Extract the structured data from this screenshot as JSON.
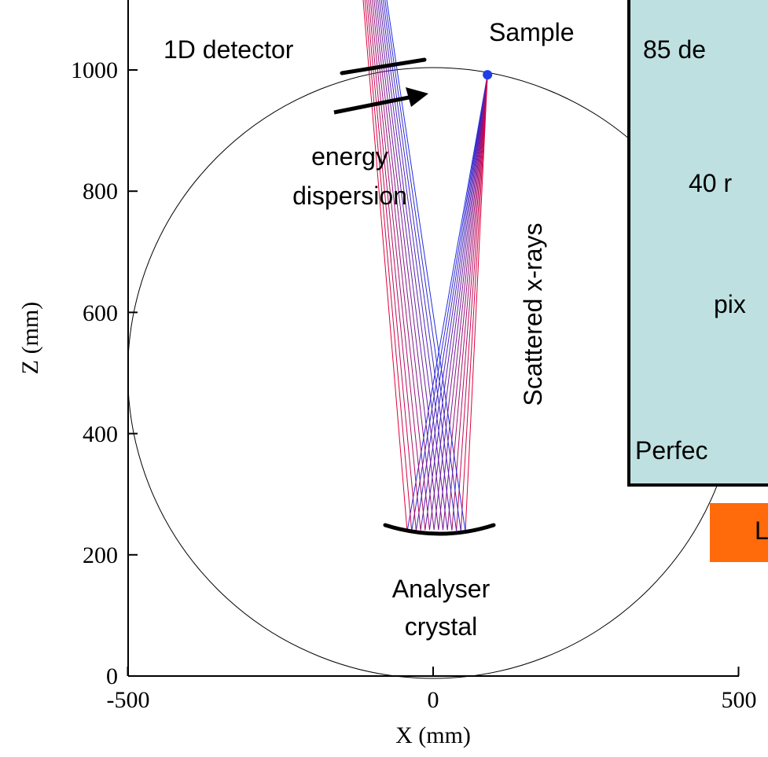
{
  "axes": {
    "x_title": "X (mm)",
    "y_title": "Z (mm)",
    "x_ticks": [
      "-500",
      "0",
      "500"
    ],
    "y_ticks": [
      "0",
      "200",
      "400",
      "600",
      "800",
      "1000"
    ],
    "x_range": [
      -500,
      500
    ],
    "y_range": [
      0,
      1100
    ]
  },
  "labels": {
    "detector": "1D detector",
    "sample": "Sample",
    "energy_1": "energy",
    "energy_2": "dispersion",
    "scattered": "Scattered x-rays",
    "analyser_1": "Analyser",
    "analyser_2": "crystal"
  },
  "info_box": {
    "lines": [
      "85 de",
      "40 r",
      "pix",
      "Perfec"
    ]
  },
  "orange_box": {
    "text": "L"
  },
  "geometry": {
    "circle_center": [
      0,
      500
    ],
    "circle_radius": 500,
    "sample": [
      89,
      992
    ],
    "analyser_center": [
      0,
      195
    ]
  },
  "colors": {
    "info_box_fill": "#bfe0e1",
    "orange_box_fill": "#ff6a0a",
    "ray_red": "#e0003a",
    "ray_blue": "#1f2de0",
    "sample_dot": "#1f3ee8"
  }
}
